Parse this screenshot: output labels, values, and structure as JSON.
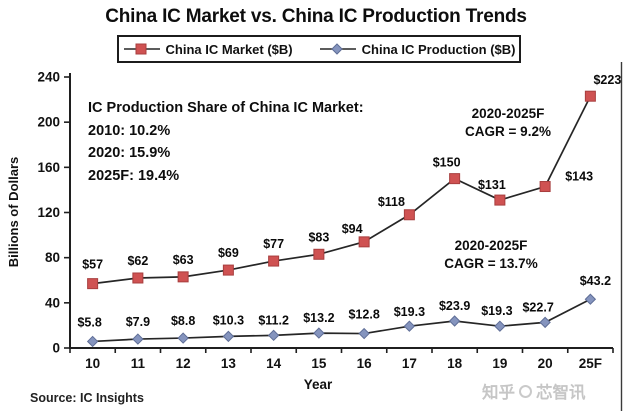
{
  "title": "China IC Market vs. China IC Production Trends",
  "legend": {
    "items": [
      {
        "label": "China IC Market ($B)",
        "marker": "square",
        "color": "#cf5252"
      },
      {
        "label": "China IC Production ($B)",
        "marker": "diamond",
        "color": "#8594be"
      }
    ]
  },
  "chart_data": {
    "type": "line",
    "categories": [
      "10",
      "11",
      "12",
      "13",
      "14",
      "15",
      "16",
      "17",
      "18",
      "19",
      "20",
      "25F"
    ],
    "series": [
      {
        "name": "China IC Market ($B)",
        "marker": "square",
        "color": "#cf5252",
        "edge_color": "#a83e3e",
        "values": [
          57,
          62,
          63,
          69,
          77,
          83,
          94,
          118,
          150,
          131,
          143,
          223
        ],
        "labels": [
          "$57",
          "$62",
          "$63",
          "$69",
          "$77",
          "$83",
          "$94",
          "$118",
          "$150",
          "$131",
          "$143",
          "$223"
        ],
        "label_offsets": [
          [
            0,
            -15
          ],
          [
            0,
            -13
          ],
          [
            0,
            -13
          ],
          [
            0,
            -13
          ],
          [
            0,
            -13
          ],
          [
            0,
            -13
          ],
          [
            -12,
            -9
          ],
          [
            -18,
            -9
          ],
          [
            -8,
            -12
          ],
          [
            -8,
            -11
          ],
          [
            34,
            -6
          ],
          [
            17,
            -12
          ]
        ]
      },
      {
        "name": "China IC Production ($B)",
        "marker": "diamond",
        "color": "#8594be",
        "edge_color": "#5e6d96",
        "values": [
          5.8,
          7.9,
          8.8,
          10.3,
          11.2,
          13.2,
          12.8,
          19.3,
          23.9,
          19.3,
          22.7,
          43.2
        ],
        "labels": [
          "$5.8",
          "$7.9",
          "$8.8",
          "$10.3",
          "$11.2",
          "$13.2",
          "$12.8",
          "$19.3",
          "$23.9",
          "$19.3",
          "$22.7",
          "$43.2"
        ],
        "label_offsets": [
          [
            -3,
            -15
          ],
          [
            0,
            -13
          ],
          [
            0,
            -13
          ],
          [
            0,
            -12
          ],
          [
            0,
            -11
          ],
          [
            0,
            -11
          ],
          [
            0,
            -15
          ],
          [
            0,
            -10
          ],
          [
            0,
            -11
          ],
          [
            -3,
            -11
          ],
          [
            -7,
            -11
          ],
          [
            5,
            -14
          ]
        ]
      }
    ],
    "title": "China IC Market vs. China IC Production Trends",
    "xlabel": "Year",
    "ylabel": "Billions of Dollars",
    "ylim": [
      0,
      240
    ],
    "ytick_step": 40,
    "yticks": [
      0,
      40,
      80,
      120,
      160,
      200,
      240
    ],
    "grid": "off",
    "legend_position": "top",
    "line_color": "#262626",
    "annotations": [
      {
        "lines": [
          "IC Production Share of China IC Market:",
          "2010: 10.2%",
          "2020: 15.9%",
          "2025F: 19.4%"
        ]
      },
      {
        "lines": [
          "2020-2025F",
          "CAGR = 9.2%"
        ]
      },
      {
        "lines": [
          "2020-2025F",
          "CAGR = 13.7%"
        ]
      }
    ]
  },
  "source": "Source: IC Insights",
  "watermark": {
    "prefix": "知乎",
    "suffix": "芯智讯"
  }
}
